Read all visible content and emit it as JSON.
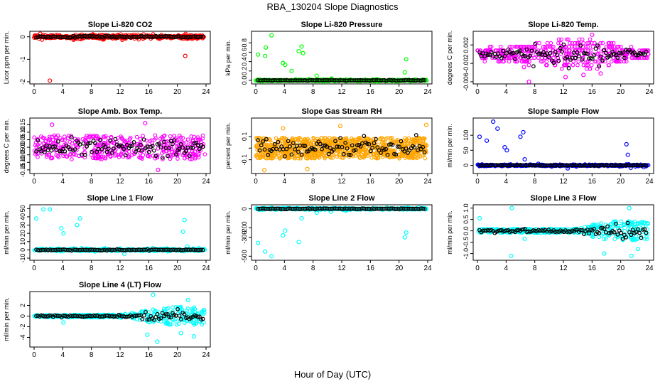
{
  "figure": {
    "title": "RBA_130204  Slope Diagnostics",
    "xlabel": "Hour of Day (UTC)"
  },
  "chart_data": [
    {
      "type": "scatter",
      "title": "Slope Li-820 CO2",
      "ylabel": "Licor ppm per min.",
      "xlim": [
        0,
        24
      ],
      "xticks": [
        0,
        4,
        8,
        12,
        16,
        20,
        24
      ],
      "ylim": [
        -2,
        0.15
      ],
      "yticks": [
        -2,
        -1,
        0
      ],
      "ytick_labels": [
        "-2",
        "-1",
        "0"
      ],
      "color": "#ff0000",
      "base": 0,
      "noise": 0.05,
      "outliers": [
        [
          2.2,
          -1.95
        ],
        [
          12.1,
          0.1
        ],
        [
          21.1,
          -0.85
        ],
        [
          5.5,
          -0.12
        ],
        [
          6.5,
          -0.1
        ],
        [
          9.5,
          0.06
        ],
        [
          15.2,
          -0.08
        ],
        [
          20.1,
          0.05
        ],
        [
          21.7,
          -0.05
        ]
      ]
    },
    {
      "type": "scatter",
      "title": "Slope Li-820 Pressure",
      "ylabel": "kPa per min.",
      "xlim": [
        0,
        24
      ],
      "xticks": [
        0,
        4,
        8,
        12,
        16,
        20,
        24
      ],
      "ylim": [
        -0.03,
        1.0
      ],
      "yticks": [
        0,
        0.2,
        0.4,
        0.6,
        0.8
      ],
      "ytick_labels": [
        "0.0",
        "0.2",
        "0.4",
        "0.6",
        "0.8"
      ],
      "color": "#00ff00",
      "base": 0,
      "noise": 0.01,
      "outliers": [
        [
          0.3,
          0.55
        ],
        [
          1.3,
          0.52
        ],
        [
          1.4,
          0.7
        ],
        [
          2.2,
          0.96
        ],
        [
          3.8,
          0.37
        ],
        [
          4.1,
          0.33
        ],
        [
          5.0,
          0.2
        ],
        [
          6.0,
          0.62
        ],
        [
          6.4,
          0.72
        ],
        [
          6.6,
          0.58
        ],
        [
          8.5,
          0.1
        ],
        [
          10.6,
          0.04
        ],
        [
          12.6,
          -0.02
        ],
        [
          21.0,
          0.45
        ],
        [
          20.8,
          0.17
        ],
        [
          21.4,
          0.01
        ]
      ]
    },
    {
      "type": "scatter",
      "title": "Slope Li-820 Temp.",
      "ylabel": "degrees C per min.",
      "xlim": [
        0,
        24
      ],
      "xticks": [
        0,
        4,
        8,
        12,
        16,
        20,
        24
      ],
      "ylim": [
        -0.006,
        0.0045
      ],
      "yticks": [
        -0.006,
        -0.002,
        0.002
      ],
      "ytick_labels": [
        "-0.006",
        "-0.002",
        "0.002"
      ],
      "color": "#ff00ff",
      "base": 0,
      "noise": 0.0012,
      "band": [
        [
          0,
          0.0012
        ],
        [
          6,
          0.0016
        ],
        [
          8,
          0.0028
        ],
        [
          17,
          0.0032
        ],
        [
          20,
          0.0015
        ],
        [
          24,
          0.0008
        ]
      ],
      "levels": 0.0008,
      "outliers": [
        [
          7.2,
          -0.006
        ],
        [
          12.3,
          -0.005
        ],
        [
          16.0,
          0.0042
        ],
        [
          14.8,
          -0.0045
        ],
        [
          17.2,
          -0.0042
        ],
        [
          6.5,
          -0.0028
        ]
      ]
    },
    {
      "type": "scatter",
      "title": "Slope Amb. Box Temp.",
      "ylabel": "degrees C per min.",
      "xlim": [
        0,
        24
      ],
      "xticks": [
        0,
        4,
        8,
        12,
        16,
        20,
        24
      ],
      "ylim": [
        -0.16,
        0.18
      ],
      "yticks": [
        -0.15,
        -0.1,
        -0.05,
        0,
        0.05,
        0.1,
        0.15
      ],
      "ytick_labels": [
        "-0.15",
        "-0.10",
        "-0.05",
        "0.00",
        "0.05",
        "0.10",
        "0.15"
      ],
      "color": "#ff00ff",
      "base": 0,
      "noise": 0.07,
      "band": [
        [
          0,
          0.08
        ],
        [
          24,
          0.08
        ]
      ],
      "outliers": [
        [
          17.3,
          -0.15
        ],
        [
          15.5,
          0.16
        ],
        [
          2.5,
          0.15
        ]
      ]
    },
    {
      "type": "scatter",
      "title": "Slope Gas Stream RH",
      "ylabel": "percent per min.",
      "xlim": [
        0,
        24
      ],
      "xticks": [
        0,
        4,
        8,
        12,
        16,
        20,
        24
      ],
      "ylim": [
        -0.2,
        0.24
      ],
      "yticks": [
        -0.1,
        0,
        0.1
      ],
      "ytick_labels": [
        "-0.1",
        "0.1"
      ],
      "ytick_label_at": [
        -0.1,
        0.1
      ],
      "color": "#ffa500",
      "base": 0,
      "noise": 0.08,
      "band": [
        [
          0,
          0.09
        ],
        [
          24,
          0.09
        ]
      ],
      "dense": true,
      "outliers": [
        [
          1.2,
          -0.19
        ],
        [
          3.8,
          0.17
        ],
        [
          11.8,
          0.19
        ],
        [
          7.2,
          -0.18
        ],
        [
          23.8,
          0.2
        ]
      ]
    },
    {
      "type": "scatter",
      "title": "Slope Sample Flow",
      "ylabel": "ml/min per min.",
      "xlim": [
        0,
        24
      ],
      "xticks": [
        0,
        4,
        8,
        12,
        16,
        20,
        24
      ],
      "ylim": [
        -20,
        150
      ],
      "yticks": [
        0,
        50,
        100
      ],
      "ytick_labels": [
        "0",
        "50",
        "100"
      ],
      "color": "#0000ff",
      "base": 0,
      "noise": 1.5,
      "outliers": [
        [
          0.3,
          95
        ],
        [
          1.3,
          82
        ],
        [
          2.2,
          145
        ],
        [
          2.8,
          122
        ],
        [
          3.8,
          60
        ],
        [
          4.1,
          50
        ],
        [
          6.0,
          95
        ],
        [
          6.4,
          110
        ],
        [
          6.6,
          20
        ],
        [
          8.5,
          5
        ],
        [
          12.6,
          -10
        ],
        [
          20.8,
          70
        ],
        [
          21.0,
          35
        ],
        [
          21.4,
          -8
        ],
        [
          23.2,
          -6
        ],
        [
          10.3,
          -3
        ]
      ]
    },
    {
      "type": "scatter",
      "title": "Slope Line 1 Flow",
      "ylabel": "ml/min per min.",
      "xlim": [
        0,
        24
      ],
      "xticks": [
        0,
        4,
        8,
        12,
        16,
        20,
        24
      ],
      "ylim": [
        -10,
        52
      ],
      "yticks": [
        -10,
        0,
        10,
        20,
        30,
        40,
        50
      ],
      "ytick_labels": [
        "-10",
        "0",
        "10",
        "20",
        "30",
        "40",
        "50"
      ],
      "color": "#00ffff",
      "base": 0,
      "noise": 0.8,
      "outliers": [
        [
          0.3,
          38
        ],
        [
          1.3,
          49
        ],
        [
          2.2,
          49
        ],
        [
          3.8,
          26
        ],
        [
          4.1,
          20
        ],
        [
          6.0,
          30
        ],
        [
          6.4,
          38
        ],
        [
          6.6,
          2
        ],
        [
          12.6,
          -5
        ],
        [
          20.8,
          22
        ],
        [
          21.0,
          36
        ],
        [
          21.4,
          4
        ],
        [
          8.5,
          -2
        ]
      ]
    },
    {
      "type": "scatter",
      "title": "Slope Line 2 Flow",
      "ylabel": "ml/min per min.",
      "xlim": [
        0,
        24
      ],
      "xticks": [
        0,
        4,
        8,
        12,
        16,
        20,
        24
      ],
      "ylim": [
        -520,
        20
      ],
      "yticks": [
        -500,
        -300,
        -200,
        0
      ],
      "ytick_labels": [
        "-500",
        "-300",
        "-200",
        "0"
      ],
      "color": "#00ffff",
      "base": 0,
      "noise": 5,
      "outliers": [
        [
          0.3,
          -360
        ],
        [
          1.3,
          -450
        ],
        [
          2.2,
          -500
        ],
        [
          3.8,
          -280
        ],
        [
          4.1,
          -230
        ],
        [
          6.0,
          -350
        ],
        [
          6.4,
          -100
        ],
        [
          8.5,
          -40
        ],
        [
          12.6,
          -20
        ],
        [
          20.8,
          -300
        ],
        [
          21.0,
          -250
        ],
        [
          10.5,
          -30
        ]
      ]
    },
    {
      "type": "scatter",
      "title": "Slope Line 3 Flow",
      "ylabel": "ml/min per min.",
      "xlim": [
        0,
        24
      ],
      "xticks": [
        0,
        4,
        8,
        12,
        16,
        20,
        24
      ],
      "ylim": [
        -1.2,
        1.05
      ],
      "yticks": [
        -1,
        -0.5,
        0,
        0.5,
        1
      ],
      "ytick_labels": [
        "-1.0",
        "-0.5",
        "0.0",
        "0.5",
        "1.0"
      ],
      "color": "#00ffff",
      "base": 0,
      "noise": 0.06,
      "band": [
        [
          0,
          0.08
        ],
        [
          14,
          0.1
        ],
        [
          17,
          0.35
        ],
        [
          20,
          0.45
        ],
        [
          24,
          0.4
        ]
      ],
      "outliers": [
        [
          0.3,
          0.55
        ],
        [
          4.7,
          -1.1
        ],
        [
          4.8,
          1.0
        ],
        [
          6.6,
          -0.35
        ],
        [
          17.7,
          -1.0
        ],
        [
          21.2,
          1.0
        ],
        [
          21.5,
          -1.1
        ],
        [
          22.4,
          -0.8
        ]
      ]
    },
    {
      "type": "scatter",
      "title": "Slope Line 4 (LT) Flow",
      "ylabel": "ml/min per min.",
      "xlim": [
        0,
        24
      ],
      "xticks": [
        0,
        4,
        8,
        12,
        16,
        20,
        24
      ],
      "ylim": [
        -5.4,
        4.2
      ],
      "yticks": [
        -4,
        -2,
        0,
        2
      ],
      "ytick_labels": [
        "-4",
        "-2",
        "0",
        "2"
      ],
      "color": "#00ffff",
      "base": 0,
      "noise": 0.15,
      "band": [
        [
          0,
          0.2
        ],
        [
          12,
          0.3
        ],
        [
          16,
          1.2
        ],
        [
          20,
          1.8
        ],
        [
          24,
          1.6
        ]
      ],
      "outliers": [
        [
          16.6,
          4.0
        ],
        [
          17.2,
          -4.8
        ],
        [
          15.8,
          -3.5
        ],
        [
          21.5,
          3.0
        ],
        [
          22.3,
          -3.8
        ],
        [
          4.1,
          -1.2
        ],
        [
          20.5,
          -3.2
        ]
      ]
    }
  ]
}
